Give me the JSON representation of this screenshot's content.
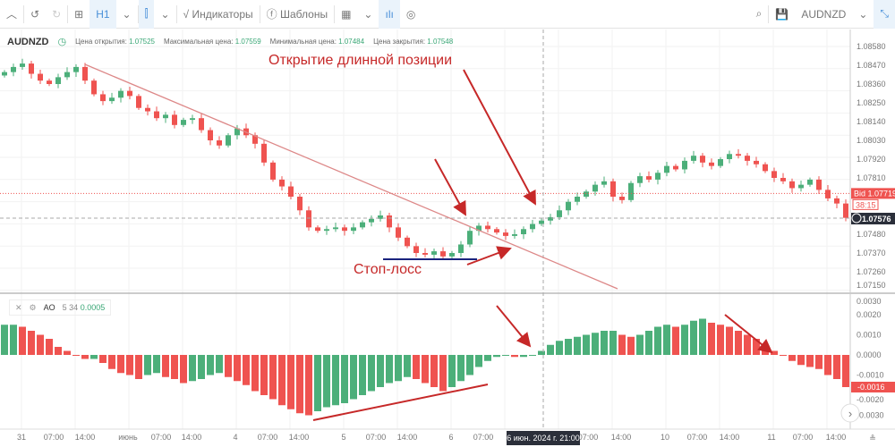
{
  "toolbar": {
    "timeframe": "H1",
    "indicators": "Индикаторы",
    "templates": "Шаблоны",
    "symbol": "AUDNZD"
  },
  "info": {
    "symbol": "AUDNZD",
    "open_label": "Цена открытия:",
    "open": "1.07525",
    "high_label": "Максимальная цена:",
    "high": "1.07559",
    "low_label": "Минимальная цена:",
    "low": "1.07484",
    "close_label": "Цена закрытия:",
    "close": "1.07548"
  },
  "indicator": {
    "name": "AO",
    "params": "5 34",
    "value": "0.0005"
  },
  "annotations": {
    "long_entry": "Открытие длинной позиции",
    "stop_loss": "Стоп-лосс"
  },
  "colors": {
    "up": "#4caf7a",
    "down": "#ef5350",
    "annotation": "#c62828",
    "stop": "#1a237e",
    "bid": "#ef5350"
  },
  "chart_data": {
    "type": "candlestick",
    "price_ticks": [
      "1.08580",
      "1.08470",
      "1.08360",
      "1.08250",
      "1.08140",
      "1.08030",
      "1.07920",
      "1.07810",
      "1.07480",
      "1.07370",
      "1.07260",
      "1.07150"
    ],
    "price_range": [
      1.0715,
      1.0858
    ],
    "bid": {
      "label": "Bid 1.07719",
      "value": 1.07719,
      "timer": "38:15"
    },
    "crosshair": {
      "price": "1.07576",
      "time": "6 июн. 2024 г. 21:00"
    },
    "closes": [
      1.0843,
      1.0846,
      1.0848,
      1.0842,
      1.0838,
      1.0836,
      1.084,
      1.0843,
      1.0846,
      1.0838,
      1.083,
      1.0826,
      1.0828,
      1.0832,
      1.0829,
      1.0822,
      1.082,
      1.0816,
      1.0818,
      1.0812,
      1.0815,
      1.0816,
      1.0809,
      1.0803,
      1.08,
      1.0806,
      1.081,
      1.0806,
      1.0801,
      1.079,
      1.078,
      1.0776,
      1.077,
      1.0762,
      1.0752,
      1.075,
      1.0751,
      1.0752,
      1.075,
      1.0752,
      1.0755,
      1.0757,
      1.0759,
      1.0752,
      1.0746,
      1.0741,
      1.0737,
      1.0736,
      1.0738,
      1.0735,
      1.0737,
      1.0742,
      1.075,
      1.0753,
      1.0751,
      1.0749,
      1.0747,
      1.0748,
      1.0751,
      1.0754,
      1.0756,
      1.0758,
      1.0762,
      1.0767,
      1.077,
      1.0773,
      1.0777,
      1.0779,
      1.077,
      1.0768,
      1.0778,
      1.0782,
      1.078,
      1.0784,
      1.0788,
      1.0786,
      1.0791,
      1.0794,
      1.079,
      1.0788,
      1.0792,
      1.0795,
      1.0794,
      1.0791,
      1.0789,
      1.0785,
      1.0781,
      1.0779,
      1.0775,
      1.0777,
      1.078,
      1.0774,
      1.0769,
      1.0766,
      1.07576
    ],
    "ao_ticks": [
      "0.0030",
      "0.0020",
      "0.0010",
      "0.0000",
      "-0.0010",
      "-0.0020",
      "-0.0030"
    ],
    "ao_current": "-0.0016",
    "ao": [
      0.0015,
      0.0015,
      0.0014,
      0.0012,
      0.001,
      0.0008,
      0.0004,
      0.0002,
      0,
      -0.0002,
      -0.0002,
      -0.0004,
      -0.0007,
      -0.0009,
      -0.001,
      -0.0012,
      -0.001,
      -0.0009,
      -0.0011,
      -0.0012,
      -0.0014,
      -0.0013,
      -0.0012,
      -0.001,
      -0.0009,
      -0.0011,
      -0.0013,
      -0.0015,
      -0.0018,
      -0.002,
      -0.0022,
      -0.0025,
      -0.0027,
      -0.0029,
      -0.003,
      -0.0028,
      -0.0026,
      -0.0025,
      -0.0024,
      -0.0022,
      -0.002,
      -0.0018,
      -0.0016,
      -0.0014,
      -0.0013,
      -0.0011,
      -0.0012,
      -0.0014,
      -0.0016,
      -0.0018,
      -0.0016,
      -0.0013,
      -0.001,
      -0.0006,
      -0.0003,
      -0.0001,
      0,
      -0.0001,
      -0.0001,
      0,
      0.0002,
      0.0005,
      0.0007,
      0.0008,
      0.0009,
      0.001,
      0.0011,
      0.0012,
      0.0012,
      0.001,
      0.0009,
      0.001,
      0.0012,
      0.0014,
      0.0015,
      0.0014,
      0.0015,
      0.0017,
      0.0018,
      0.0016,
      0.0015,
      0.0014,
      0.0012,
      0.001,
      0.0008,
      0.0005,
      0.0002,
      0,
      -0.0003,
      -0.0005,
      -0.0006,
      -0.0007,
      -0.001,
      -0.0012,
      -0.0016
    ],
    "ao_range": [
      -0.0033,
      0.0033
    ],
    "time_labels": [
      "31",
      "07:00",
      "14:00",
      "июнь",
      "07:00",
      "14:00",
      "4",
      "07:00",
      "14:00",
      "5",
      "07:00",
      "14:00",
      "6",
      "07:00",
      "07:00",
      "14:00",
      "10",
      "07:00",
      "14:00",
      "11",
      "07:00",
      "14:00"
    ]
  }
}
